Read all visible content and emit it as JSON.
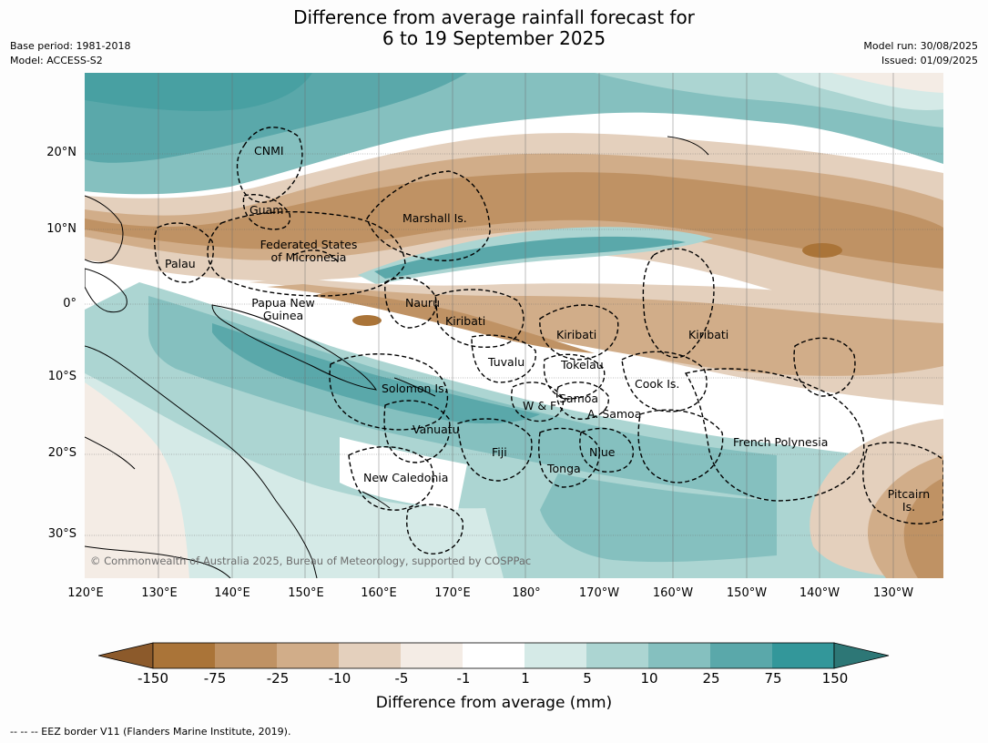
{
  "title_line1": "Difference from average rainfall forecast for",
  "title_line2": "6 to 19 September 2025",
  "base_period": "Base period: 1981-2018",
  "model": "Model: ACCESS-S2",
  "model_run": "Model run: 30/08/2025",
  "issued": "Issued: 01/09/2025",
  "copyright": "© Commonwealth of Australia 2025, Bureau of Meteorology, supported by COSPPac",
  "lon_ticks": [
    "120°E",
    "130°E",
    "140°E",
    "150°E",
    "160°E",
    "170°E",
    "180°",
    "170°W",
    "160°W",
    "150°W",
    "140°W",
    "130°W"
  ],
  "lat_ticks": [
    "20°N",
    "10°N",
    "0°",
    "10°S",
    "20°S",
    "30°S"
  ],
  "places": {
    "cnmi": "CNMI",
    "guam": "Guam",
    "marshall": "Marshall Is.",
    "fsm_1": "Federated States",
    "fsm_2": "of Micronesia",
    "palau": "Palau",
    "png_1": "Papua New",
    "png_2": "Guinea",
    "nauru": "Nauru",
    "kiribati_w": "Kiribati",
    "kiribati_c": "Kiribati",
    "kiribati_e": "Kiribati",
    "tuvalu": "Tuvalu",
    "tokelau": "Tokelau",
    "cook": "Cook Is.",
    "solomon": "Solomon Is.",
    "wf": "W & F",
    "samoa": "Samoa",
    "asamoa": "A. Samoa",
    "vanuatu": "Vanuatu",
    "fiji": "Fiji",
    "niue": "Niue",
    "tonga": "Tonga",
    "french_polynesia": "French Polynesia",
    "new_caledonia": "New Caledonia",
    "pitcairn_1": "Pitcairn",
    "pitcairn_2": "Is."
  },
  "colorbar": {
    "labels": [
      "-150",
      "-75",
      "-25",
      "-10",
      "-5",
      "-1",
      "1",
      "5",
      "10",
      "25",
      "75",
      "150"
    ],
    "colors": [
      "#8c5a2b",
      "#aa7438",
      "#bf9264",
      "#d1ad89",
      "#e4d0bd",
      "#f4ece5",
      "#ffffff",
      "#d5eae7",
      "#acd5d2",
      "#85c0bf",
      "#5aa8aa",
      "#33979a",
      "#2d7776"
    ],
    "title": "Difference from average (mm)"
  },
  "footnote": "--  --  -- EEZ border V11 (Flanders Marine Institute, 2019)."
}
